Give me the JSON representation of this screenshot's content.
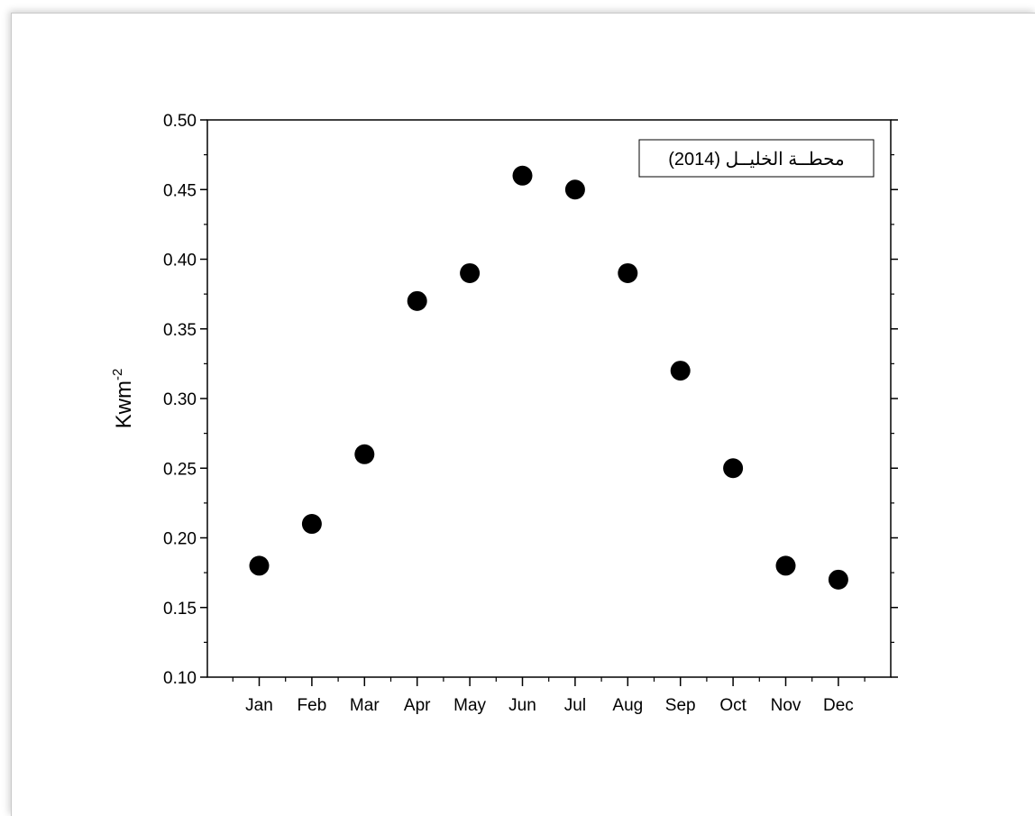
{
  "chart_data": {
    "type": "scatter",
    "categories": [
      "Jan",
      "Feb",
      "Mar",
      "Apr",
      "May",
      "Jun",
      "Jul",
      "Aug",
      "Sep",
      "Oct",
      "Nov",
      "Dec"
    ],
    "series": [
      {
        "name": "محطــة الخليــل (2014)",
        "values": [
          0.18,
          0.21,
          0.26,
          0.37,
          0.39,
          0.46,
          0.45,
          0.39,
          0.32,
          0.25,
          0.18,
          0.17
        ],
        "color": "#000000",
        "marker": "circle"
      }
    ],
    "ylabel": "Kwm",
    "ylabel_superscript": "-2",
    "ylim": [
      0.1,
      0.5
    ],
    "yticks": [
      "0.10",
      "0.15",
      "0.20",
      "0.25",
      "0.30",
      "0.35",
      "0.40",
      "0.45",
      "0.50"
    ],
    "grid": false,
    "legend_position": "top-right"
  }
}
